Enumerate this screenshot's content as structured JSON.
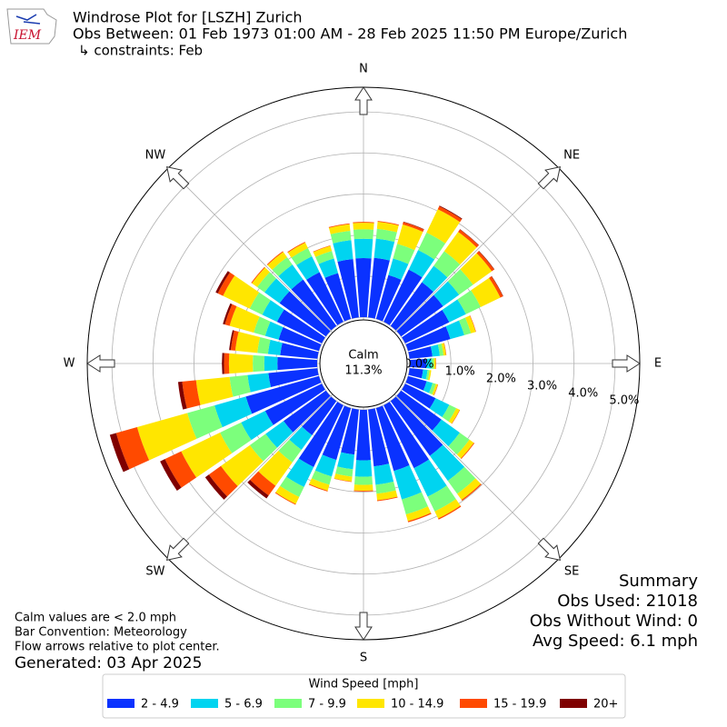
{
  "chart_data": {
    "type": "windrose",
    "logo_text": "IEM",
    "title": "Windrose Plot for [LSZH] Zurich",
    "subtitle": "Obs Between: 01 Feb 1973 01:00 AM - 28 Feb 2025 11:50 PM Europe/Zurich",
    "constraints": "↳ constraints: Feb",
    "direction_labels": [
      "N",
      "NE",
      "E",
      "SE",
      "S",
      "SW",
      "W",
      "NW"
    ],
    "calm_label": "Calm",
    "calm_value": {
      "value": 11.3,
      "label": "11.3%"
    },
    "x": [
      0,
      10,
      20,
      30,
      40,
      50,
      60,
      70,
      80,
      90,
      100,
      110,
      120,
      130,
      140,
      150,
      160,
      170,
      180,
      190,
      200,
      210,
      220,
      230,
      240,
      250,
      260,
      270,
      280,
      290,
      300,
      310,
      320,
      330,
      340,
      350
    ],
    "rlim": [
      0,
      5.6
    ],
    "rticks": [
      {
        "value": 0,
        "label": "0.0%"
      },
      {
        "value": 1,
        "label": "1.0%"
      },
      {
        "value": 2,
        "label": "2.0%"
      },
      {
        "value": 3,
        "label": "3.0%"
      },
      {
        "value": 4,
        "label": "4.0%"
      },
      {
        "value": 5,
        "label": "5.0%"
      }
    ],
    "grid": true,
    "legend_title": "Wind Speed [mph]",
    "series": [
      {
        "name": "2 - 4.9",
        "color": "#0a32ff",
        "values": [
          1.44,
          1.46,
          1.11,
          1.41,
          1.31,
          1.26,
          1.19,
          1.07,
          0.56,
          0.4,
          0.33,
          0.47,
          0.82,
          1.21,
          1.64,
          1.7,
          1.59,
          1.39,
          1.23,
          1.1,
          1.31,
          1.67,
          1.02,
          1.27,
          1.53,
          1.85,
          1.2,
          0.97,
          0.91,
          1.02,
          1.21,
          1.39,
          1.39,
          1.34,
          1.16,
          1.43
        ]
      },
      {
        "name": "5 - 6.9",
        "color": "#00d4f0",
        "values": [
          0.47,
          0.47,
          0.42,
          0.53,
          0.49,
          0.48,
          0.45,
          0.35,
          0.18,
          0.13,
          0.11,
          0.15,
          0.37,
          0.55,
          0.75,
          0.77,
          0.72,
          0.45,
          0.4,
          0.36,
          0.42,
          0.54,
          0.44,
          0.54,
          0.65,
          0.79,
          0.51,
          0.32,
          0.3,
          0.34,
          0.4,
          0.45,
          0.45,
          0.43,
          0.37,
          0.46
        ]
      },
      {
        "name": "7 - 9.9",
        "color": "#7cff7c",
        "values": [
          0.23,
          0.24,
          0.37,
          0.47,
          0.44,
          0.42,
          0.4,
          0.17,
          0.09,
          0.06,
          0.05,
          0.08,
          0.19,
          0.29,
          0.39,
          0.4,
          0.38,
          0.22,
          0.2,
          0.18,
          0.21,
          0.27,
          0.38,
          0.47,
          0.57,
          0.69,
          0.44,
          0.28,
          0.26,
          0.29,
          0.34,
          0.22,
          0.22,
          0.22,
          0.19,
          0.23
        ]
      },
      {
        "name": "10 - 14.9",
        "color": "#ffe600",
        "values": [
          0.16,
          0.17,
          0.49,
          0.63,
          0.58,
          0.56,
          0.53,
          0.12,
          0.06,
          0.04,
          0.04,
          0.05,
          0.09,
          0.13,
          0.18,
          0.19,
          0.17,
          0.16,
          0.14,
          0.12,
          0.15,
          0.19,
          0.7,
          0.87,
          1.05,
          1.27,
          0.82,
          0.58,
          0.54,
          0.61,
          0.72,
          0.16,
          0.16,
          0.15,
          0.13,
          0.16
        ]
      },
      {
        "name": "15 - 19.9",
        "color": "#ff4a00",
        "values": [
          0.02,
          0.02,
          0.06,
          0.08,
          0.07,
          0.07,
          0.07,
          0.01,
          0.01,
          0.01,
          0.0,
          0.01,
          0.01,
          0.02,
          0.03,
          0.03,
          0.03,
          0.02,
          0.02,
          0.01,
          0.02,
          0.02,
          0.29,
          0.36,
          0.44,
          0.53,
          0.34,
          0.12,
          0.11,
          0.12,
          0.14,
          0.02,
          0.02,
          0.02,
          0.01,
          0.02
        ]
      },
      {
        "name": "20+",
        "color": "#7f0000",
        "values": [
          0.0,
          0.0,
          0.01,
          0.02,
          0.01,
          0.01,
          0.01,
          0.0,
          0.0,
          0.0,
          0.0,
          0.0,
          0.0,
          0.0,
          0.0,
          0.0,
          0.0,
          0.0,
          0.0,
          0.0,
          0.0,
          0.0,
          0.09,
          0.11,
          0.13,
          0.16,
          0.1,
          0.05,
          0.04,
          0.05,
          0.06,
          0.0,
          0.0,
          0.0,
          0.0,
          0.0
        ]
      }
    ],
    "summary": [
      "Summary",
      "Obs Used: 21018",
      "Obs Without Wind: 0",
      "Avg Speed: 6.1 mph"
    ],
    "notes": [
      "Calm values are < 2.0 mph",
      "Bar Convention: Meteorology",
      "Flow arrows relative to plot center."
    ],
    "generated": "Generated: 03 Apr 2025"
  }
}
